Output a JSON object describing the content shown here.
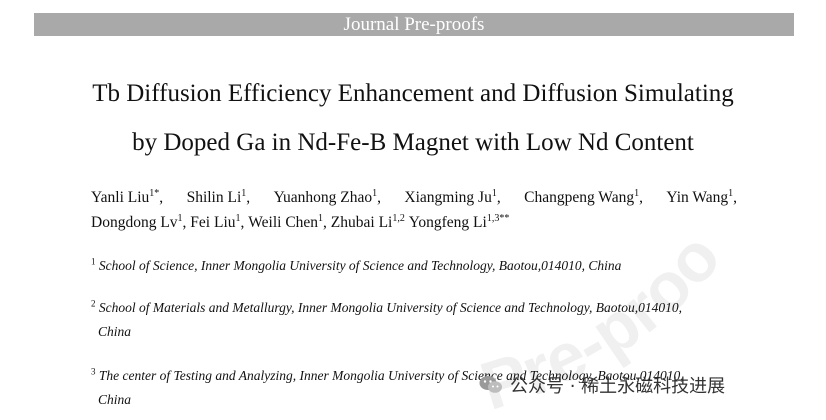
{
  "banner": "Journal Pre-proofs",
  "title": {
    "line1": "Tb Diffusion Efficiency Enhancement and Diffusion Simulating",
    "line2": "by Doped Ga in Nd-Fe-B Magnet with Low Nd Content"
  },
  "authors": [
    {
      "name": "Yanli Liu",
      "sup": "1*",
      "sep": ","
    },
    {
      "name": "Shilin Li",
      "sup": "1",
      "sep": ","
    },
    {
      "name": "Yuanhong Zhao",
      "sup": "1",
      "sep": ","
    },
    {
      "name": "Xiangming Ju",
      "sup": "1",
      "sep": ","
    },
    {
      "name": "Changpeng Wang",
      "sup": "1",
      "sep": ","
    },
    {
      "name": "Yin Wang",
      "sup": "1",
      "sep": ","
    },
    {
      "name": "Dongdong Lv",
      "sup": "1",
      "sep": ","
    },
    {
      "name": "Fei Liu",
      "sup": "1",
      "sep": ","
    },
    {
      "name": "Weili Chen",
      "sup": "1",
      "sep": ","
    },
    {
      "name": "Zhubai Li",
      "sup": "1,2",
      "sep": ""
    },
    {
      "name": "Yongfeng Li",
      "sup": "1,3**",
      "sep": ""
    }
  ],
  "affiliations": [
    {
      "num": "1",
      "line1": "School of Science, Inner Mongolia University of Science and Technology, Baotou,014010, China",
      "line2": ""
    },
    {
      "num": "2",
      "line1": "School of Materials and Metallurgy, Inner Mongolia University of Science and Technology, Baotou,014010,",
      "line2": "China"
    },
    {
      "num": "3",
      "line1": "The center of Testing and Analyzing, Inner Mongolia University of Science and Technology, Baotou,014010,",
      "line2": "China"
    }
  ],
  "overlay": {
    "watermark_text": "Pre-proofs",
    "wechat_label": "公众号 · 稀土永磁科技进展",
    "wechat_icon": "wechat-icon"
  }
}
